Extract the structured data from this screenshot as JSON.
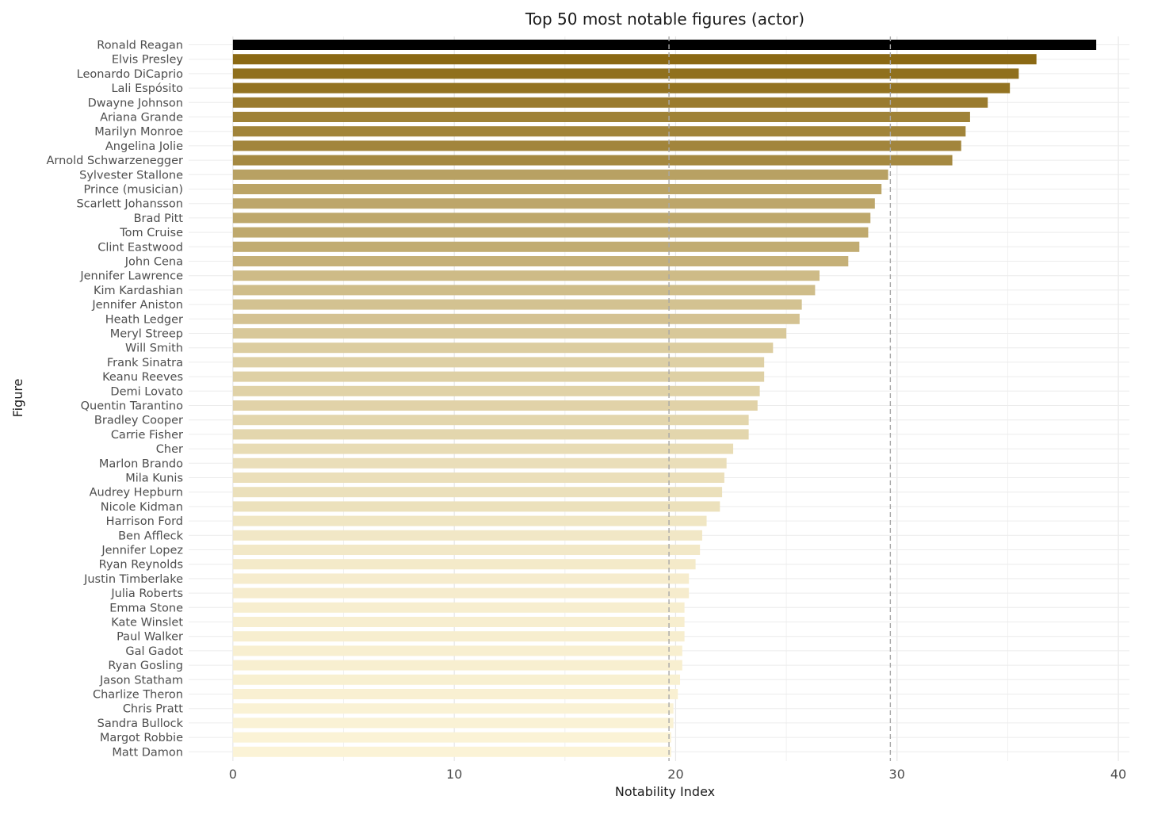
{
  "chart_data": {
    "type": "bar",
    "orientation": "horizontal",
    "title": "Top 50 most notable figures (actor)",
    "xlabel": "Notability Index",
    "ylabel": "Figure",
    "xlim": [
      -2,
      40.5
    ],
    "xticks": [
      0,
      10,
      20,
      30,
      40
    ],
    "grid": true,
    "reference_lines": [
      19.7,
      29.7
    ],
    "color_scale": {
      "high": "#8B6914",
      "low": "#FBF3D6",
      "top_bar": "#000000"
    },
    "categories": [
      "Ronald Reagan",
      "Elvis Presley",
      "Leonardo DiCaprio",
      "Lali Espósito",
      "Dwayne Johnson",
      "Ariana Grande",
      "Marilyn Monroe",
      "Angelina Jolie",
      "Arnold Schwarzenegger",
      "Sylvester Stallone",
      "Prince (musician)",
      "Scarlett Johansson",
      "Brad Pitt",
      "Tom Cruise",
      "Clint Eastwood",
      "John Cena",
      "Jennifer Lawrence",
      "Kim Kardashian",
      "Jennifer Aniston",
      "Heath Ledger",
      "Meryl Streep",
      "Will Smith",
      "Frank Sinatra",
      "Keanu Reeves",
      "Demi Lovato",
      "Quentin Tarantino",
      "Bradley Cooper",
      "Carrie Fisher",
      "Cher",
      "Marlon Brando",
      "Mila Kunis",
      "Audrey Hepburn",
      "Nicole Kidman",
      "Harrison Ford",
      "Ben Affleck",
      "Jennifer Lopez",
      "Ryan Reynolds",
      "Justin Timberlake",
      "Julia Roberts",
      "Emma Stone",
      "Kate Winslet",
      "Paul Walker",
      "Gal Gadot",
      "Ryan Gosling",
      "Jason Statham",
      "Charlize Theron",
      "Chris Pratt",
      "Sandra Bullock",
      "Margot Robbie",
      "Matt Damon"
    ],
    "values": [
      39.0,
      36.3,
      35.5,
      35.1,
      34.1,
      33.3,
      33.1,
      32.9,
      32.5,
      29.6,
      29.3,
      29.0,
      28.8,
      28.7,
      28.3,
      27.8,
      26.5,
      26.3,
      25.7,
      25.6,
      25.0,
      24.4,
      24.0,
      24.0,
      23.8,
      23.7,
      23.3,
      23.3,
      22.6,
      22.3,
      22.2,
      22.1,
      22.0,
      21.4,
      21.2,
      21.1,
      20.9,
      20.6,
      20.6,
      20.4,
      20.4,
      20.4,
      20.3,
      20.3,
      20.2,
      20.1,
      19.9,
      19.9,
      19.8,
      19.8
    ]
  }
}
